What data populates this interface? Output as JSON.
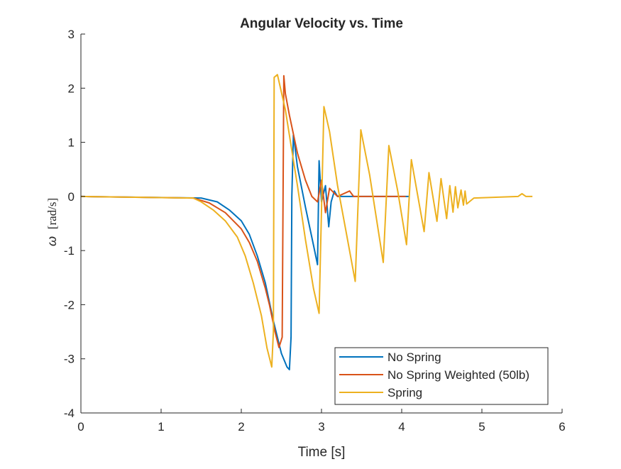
{
  "chart_data": {
    "type": "line",
    "title": "Angular Velocity vs. Time",
    "xlabel": "Time [s]",
    "ylabel_symbol": "ω",
    "ylabel_unit": "[rad/s]",
    "xlim": [
      0,
      6
    ],
    "ylim": [
      -4,
      3
    ],
    "xticks": [
      0,
      1,
      2,
      3,
      4,
      5,
      6
    ],
    "yticks": [
      -4,
      -3,
      -2,
      -1,
      0,
      1,
      2,
      3
    ],
    "grid": false,
    "legend_position": "bottom-right",
    "series": [
      {
        "name": "No Spring",
        "color": "#0072BD",
        "x": [
          0,
          1.5,
          1.7,
          1.85,
          2.0,
          2.1,
          2.2,
          2.3,
          2.4,
          2.5,
          2.57,
          2.6,
          2.62,
          2.63,
          2.65,
          2.7,
          2.8,
          2.9,
          2.95,
          2.97,
          3.0,
          3.05,
          3.09,
          3.12,
          3.16,
          3.2,
          4.1
        ],
        "y": [
          0,
          -0.03,
          -0.1,
          -0.25,
          -0.45,
          -0.7,
          -1.1,
          -1.6,
          -2.3,
          -2.9,
          -3.15,
          -3.2,
          -2.6,
          0,
          1.14,
          0.55,
          -0.2,
          -0.9,
          -1.26,
          0.66,
          -0.1,
          0.2,
          -0.56,
          -0.1,
          0.1,
          0,
          0
        ]
      },
      {
        "name": "No Spring Weighted (50lb)",
        "color": "#D95319",
        "x": [
          0,
          1.4,
          1.6,
          1.8,
          2.0,
          2.1,
          2.2,
          2.3,
          2.35,
          2.42,
          2.47,
          2.51,
          2.53,
          2.55,
          2.6,
          2.7,
          2.8,
          2.88,
          2.95,
          3.0,
          3.05,
          3.1,
          3.2,
          3.35,
          3.4,
          4.05
        ],
        "y": [
          0,
          -0.03,
          -0.12,
          -0.3,
          -0.6,
          -0.85,
          -1.2,
          -1.7,
          -2.0,
          -2.5,
          -2.79,
          -2.6,
          2.23,
          1.9,
          1.5,
          0.8,
          0.3,
          0,
          -0.1,
          0.3,
          -0.3,
          0.15,
          0,
          0.1,
          0,
          0
        ]
      },
      {
        "name": "Spring",
        "color": "#EDB120",
        "x": [
          0,
          1.4,
          1.5,
          1.65,
          1.8,
          1.95,
          2.05,
          2.15,
          2.25,
          2.32,
          2.38,
          2.4,
          2.41,
          2.45,
          2.55,
          2.7,
          2.8,
          2.9,
          2.97,
          3.03,
          3.1,
          3.2,
          3.3,
          3.42,
          3.49,
          3.6,
          3.77,
          3.84,
          3.95,
          4.06,
          4.12,
          4.28,
          4.34,
          4.44,
          4.49,
          4.56,
          4.6,
          4.64,
          4.67,
          4.7,
          4.74,
          4.77,
          4.79,
          4.81,
          4.9,
          5.45,
          5.5,
          5.55,
          5.63
        ],
        "y": [
          0,
          -0.03,
          -0.1,
          -0.25,
          -0.45,
          -0.75,
          -1.1,
          -1.6,
          -2.2,
          -2.8,
          -3.15,
          -2.5,
          2.2,
          2.25,
          1.6,
          0.2,
          -0.8,
          -1.7,
          -2.16,
          1.66,
          1.2,
          0.2,
          -0.6,
          -1.57,
          1.23,
          0.4,
          -1.22,
          0.94,
          0.1,
          -0.89,
          0.68,
          -0.65,
          0.44,
          -0.46,
          0.33,
          -0.41,
          0.2,
          -0.29,
          0.18,
          -0.21,
          0.12,
          -0.16,
          0.1,
          -0.14,
          -0.03,
          0,
          0.05,
          0,
          0
        ]
      }
    ]
  }
}
